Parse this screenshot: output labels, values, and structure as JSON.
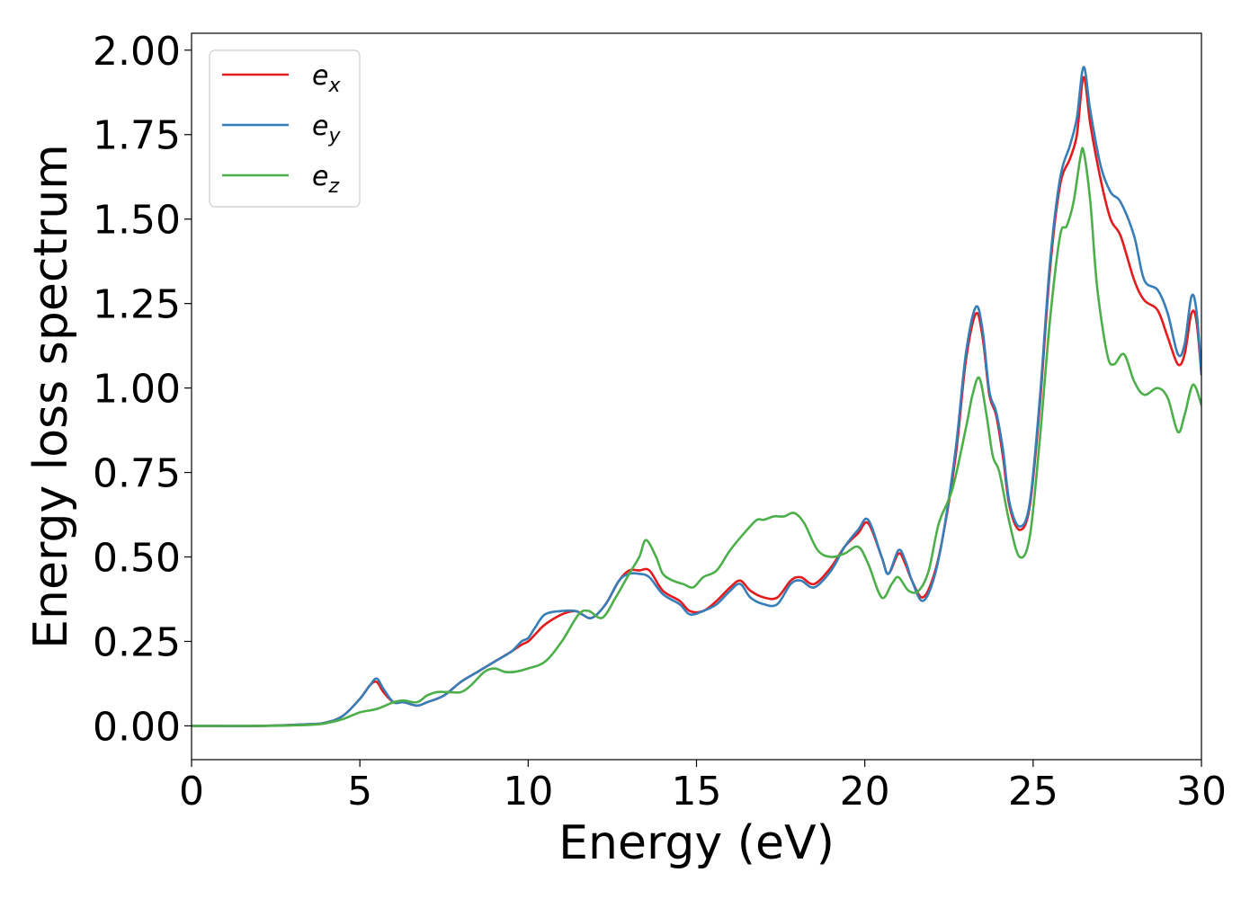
{
  "chart_data": {
    "type": "line",
    "title": "",
    "xlabel": "Energy (eV)",
    "ylabel": "Energy loss spectrum",
    "xlim": [
      0,
      30
    ],
    "ylim": [
      -0.1,
      2.05
    ],
    "xticks": [
      0,
      5,
      10,
      15,
      20,
      25,
      30
    ],
    "xtick_labels": [
      "0",
      "5",
      "10",
      "15",
      "20",
      "25",
      "30"
    ],
    "yticks": [
      0.0,
      0.25,
      0.5,
      0.75,
      1.0,
      1.25,
      1.5,
      1.75,
      2.0
    ],
    "ytick_labels": [
      "0.00",
      "0.25",
      "0.50",
      "0.75",
      "1.00",
      "1.25",
      "1.50",
      "1.75",
      "2.00"
    ],
    "grid": false,
    "legend_position": "top-left",
    "series": [
      {
        "name": "e_x",
        "legend_main": "e",
        "legend_sub": "x",
        "color": "#e41a1c",
        "x": [
          0,
          2,
          3.5,
          4.0,
          4.5,
          5.0,
          5.3,
          5.5,
          5.7,
          6.0,
          6.3,
          6.7,
          7.0,
          7.5,
          8.0,
          8.5,
          9.0,
          9.5,
          9.8,
          10.0,
          10.2,
          10.5,
          11.0,
          11.4,
          11.6,
          11.9,
          12.3,
          12.7,
          13.0,
          13.3,
          13.6,
          14.0,
          14.5,
          14.8,
          15.2,
          15.6,
          16.0,
          16.3,
          16.6,
          17.0,
          17.4,
          17.8,
          18.1,
          18.5,
          19.0,
          19.4,
          19.8,
          20.1,
          20.5,
          20.7,
          21.0,
          21.2,
          21.4,
          21.7,
          22.0,
          22.3,
          22.7,
          23.0,
          23.3,
          23.5,
          23.7,
          23.9,
          24.1,
          24.3,
          24.6,
          24.9,
          25.2,
          25.5,
          25.8,
          26.1,
          26.3,
          26.5,
          26.7,
          27.0,
          27.3,
          27.6,
          28.0,
          28.3,
          28.7,
          29.0,
          29.3,
          29.5,
          29.7,
          29.85,
          30.0
        ],
        "y": [
          0.0,
          0.0,
          0.005,
          0.01,
          0.03,
          0.08,
          0.12,
          0.13,
          0.1,
          0.07,
          0.07,
          0.06,
          0.07,
          0.09,
          0.13,
          0.16,
          0.19,
          0.22,
          0.24,
          0.25,
          0.27,
          0.3,
          0.33,
          0.34,
          0.33,
          0.32,
          0.36,
          0.43,
          0.46,
          0.46,
          0.46,
          0.4,
          0.37,
          0.34,
          0.34,
          0.37,
          0.41,
          0.43,
          0.4,
          0.38,
          0.38,
          0.43,
          0.44,
          0.42,
          0.47,
          0.53,
          0.57,
          0.6,
          0.5,
          0.45,
          0.51,
          0.48,
          0.43,
          0.38,
          0.43,
          0.55,
          0.8,
          1.08,
          1.22,
          1.15,
          0.98,
          0.92,
          0.8,
          0.65,
          0.58,
          0.65,
          0.95,
          1.35,
          1.6,
          1.68,
          1.75,
          1.92,
          1.78,
          1.62,
          1.5,
          1.45,
          1.32,
          1.26,
          1.23,
          1.15,
          1.07,
          1.1,
          1.22,
          1.2,
          1.04
        ]
      },
      {
        "name": "e_y",
        "legend_main": "e",
        "legend_sub": "y",
        "color": "#377eb8",
        "x": [
          0,
          2,
          3.5,
          4.0,
          4.5,
          5.0,
          5.3,
          5.5,
          5.7,
          6.0,
          6.3,
          6.7,
          7.0,
          7.5,
          8.0,
          8.5,
          9.0,
          9.5,
          9.8,
          10.0,
          10.2,
          10.5,
          11.0,
          11.4,
          11.6,
          11.9,
          12.3,
          12.7,
          13.0,
          13.3,
          13.6,
          14.0,
          14.5,
          14.8,
          15.2,
          15.6,
          16.0,
          16.3,
          16.6,
          17.0,
          17.4,
          17.8,
          18.1,
          18.5,
          19.0,
          19.4,
          19.8,
          20.1,
          20.5,
          20.7,
          21.0,
          21.2,
          21.4,
          21.7,
          22.0,
          22.3,
          22.7,
          23.0,
          23.3,
          23.5,
          23.7,
          23.9,
          24.1,
          24.3,
          24.6,
          24.9,
          25.2,
          25.5,
          25.8,
          26.1,
          26.3,
          26.5,
          26.7,
          27.0,
          27.3,
          27.6,
          28.0,
          28.3,
          28.7,
          29.0,
          29.3,
          29.5,
          29.7,
          29.85,
          30.0
        ],
        "y": [
          0.0,
          0.0,
          0.005,
          0.01,
          0.03,
          0.08,
          0.12,
          0.14,
          0.11,
          0.07,
          0.07,
          0.06,
          0.07,
          0.09,
          0.13,
          0.16,
          0.19,
          0.22,
          0.25,
          0.26,
          0.29,
          0.33,
          0.34,
          0.34,
          0.33,
          0.32,
          0.36,
          0.43,
          0.45,
          0.45,
          0.44,
          0.39,
          0.36,
          0.33,
          0.34,
          0.36,
          0.4,
          0.42,
          0.38,
          0.36,
          0.36,
          0.42,
          0.43,
          0.41,
          0.46,
          0.53,
          0.58,
          0.61,
          0.5,
          0.45,
          0.52,
          0.49,
          0.43,
          0.37,
          0.42,
          0.55,
          0.82,
          1.1,
          1.24,
          1.17,
          0.99,
          0.93,
          0.82,
          0.66,
          0.59,
          0.66,
          0.97,
          1.37,
          1.62,
          1.72,
          1.8,
          1.95,
          1.82,
          1.66,
          1.58,
          1.55,
          1.45,
          1.32,
          1.29,
          1.22,
          1.1,
          1.13,
          1.27,
          1.23,
          1.04
        ]
      },
      {
        "name": "e_z",
        "legend_main": "e",
        "legend_sub": "z",
        "color": "#4daf4a",
        "x": [
          0,
          2,
          3.5,
          4.0,
          4.5,
          5.0,
          5.5,
          6.0,
          6.3,
          6.7,
          7.0,
          7.3,
          7.6,
          8.0,
          8.3,
          8.7,
          9.0,
          9.3,
          9.6,
          10.0,
          10.5,
          11.0,
          11.5,
          11.8,
          12.2,
          12.6,
          13.0,
          13.3,
          13.5,
          13.8,
          14.0,
          14.3,
          14.6,
          14.9,
          15.2,
          15.6,
          16.0,
          16.5,
          16.8,
          17.0,
          17.3,
          17.6,
          17.9,
          18.2,
          18.6,
          19.0,
          19.4,
          19.8,
          20.1,
          20.5,
          20.8,
          21.0,
          21.3,
          21.6,
          21.9,
          22.2,
          22.6,
          23.0,
          23.2,
          23.4,
          23.6,
          23.8,
          24.0,
          24.3,
          24.6,
          24.9,
          25.2,
          25.5,
          25.8,
          26.0,
          26.2,
          26.4,
          26.5,
          26.7,
          26.9,
          27.2,
          27.4,
          27.7,
          28.0,
          28.3,
          28.7,
          29.0,
          29.3,
          29.5,
          29.75,
          30.0
        ],
        "y": [
          0.0,
          0.0,
          0.003,
          0.008,
          0.02,
          0.04,
          0.05,
          0.07,
          0.075,
          0.07,
          0.09,
          0.1,
          0.1,
          0.1,
          0.12,
          0.16,
          0.17,
          0.16,
          0.16,
          0.17,
          0.19,
          0.25,
          0.33,
          0.34,
          0.32,
          0.38,
          0.45,
          0.5,
          0.55,
          0.5,
          0.45,
          0.43,
          0.42,
          0.41,
          0.44,
          0.46,
          0.52,
          0.58,
          0.61,
          0.61,
          0.62,
          0.62,
          0.63,
          0.6,
          0.52,
          0.5,
          0.51,
          0.53,
          0.48,
          0.38,
          0.42,
          0.44,
          0.4,
          0.4,
          0.46,
          0.6,
          0.7,
          0.88,
          0.98,
          1.03,
          0.93,
          0.8,
          0.75,
          0.6,
          0.5,
          0.56,
          0.85,
          1.2,
          1.45,
          1.48,
          1.55,
          1.68,
          1.7,
          1.55,
          1.3,
          1.1,
          1.07,
          1.1,
          1.02,
          0.98,
          1.0,
          0.97,
          0.87,
          0.92,
          1.01,
          0.95
        ]
      }
    ]
  }
}
